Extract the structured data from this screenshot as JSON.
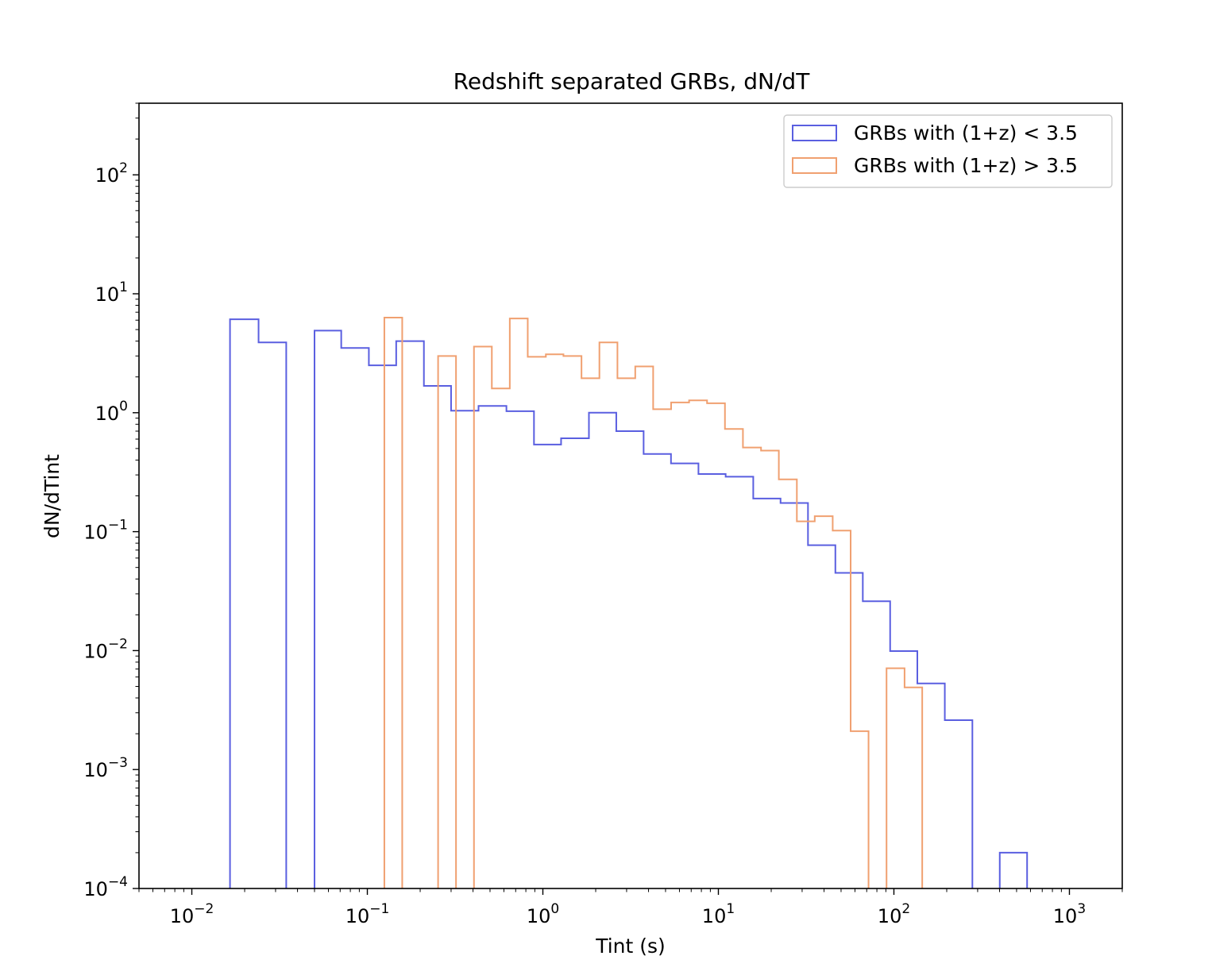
{
  "chart_data": {
    "type": "histogram-step",
    "title": "Redshift separated GRBs, dN/dT",
    "xlabel": "Tint (s)",
    "ylabel": "dN/dTint",
    "xscale": "log",
    "yscale": "log",
    "xlim": [
      0.005,
      2000
    ],
    "ylim": [
      0.0001,
      400
    ],
    "x_ticks": [
      {
        "value": 0.01,
        "base": "10",
        "exp": "−2"
      },
      {
        "value": 0.1,
        "base": "10",
        "exp": "−1"
      },
      {
        "value": 1,
        "base": "10",
        "exp": "0"
      },
      {
        "value": 10,
        "base": "10",
        "exp": "1"
      },
      {
        "value": 100,
        "base": "10",
        "exp": "2"
      },
      {
        "value": 1000,
        "base": "10",
        "exp": "3"
      }
    ],
    "y_ticks": [
      {
        "value": 0.0001,
        "base": "10",
        "exp": "−4"
      },
      {
        "value": 0.001,
        "base": "10",
        "exp": "−3"
      },
      {
        "value": 0.01,
        "base": "10",
        "exp": "−2"
      },
      {
        "value": 0.1,
        "base": "10",
        "exp": "−1"
      },
      {
        "value": 1,
        "base": "10",
        "exp": "0"
      },
      {
        "value": 10,
        "base": "10",
        "exp": "1"
      },
      {
        "value": 100,
        "base": "10",
        "exp": "2"
      }
    ],
    "legend_position": "top-right",
    "grid": false,
    "series": [
      {
        "name": "GRBs with (1+z) < 3.5",
        "color": "#5a5fe0",
        "bins": [
          {
            "x0": 0.0165,
            "x1": 0.024,
            "y": 6.1
          },
          {
            "x0": 0.024,
            "x1": 0.0345,
            "y": 3.9
          },
          {
            "x0": 0.0345,
            "x1": 0.05,
            "y": 0
          },
          {
            "x0": 0.05,
            "x1": 0.071,
            "y": 4.9
          },
          {
            "x0": 0.071,
            "x1": 0.102,
            "y": 3.5
          },
          {
            "x0": 0.102,
            "x1": 0.146,
            "y": 2.5
          },
          {
            "x0": 0.146,
            "x1": 0.21,
            "y": 4.0
          },
          {
            "x0": 0.21,
            "x1": 0.3,
            "y": 1.68
          },
          {
            "x0": 0.3,
            "x1": 0.43,
            "y": 1.04
          },
          {
            "x0": 0.43,
            "x1": 0.62,
            "y": 1.14
          },
          {
            "x0": 0.62,
            "x1": 0.89,
            "y": 1.03
          },
          {
            "x0": 0.89,
            "x1": 1.27,
            "y": 0.54
          },
          {
            "x0": 1.27,
            "x1": 1.83,
            "y": 0.61
          },
          {
            "x0": 1.83,
            "x1": 2.62,
            "y": 1.0
          },
          {
            "x0": 2.62,
            "x1": 3.75,
            "y": 0.7
          },
          {
            "x0": 3.75,
            "x1": 5.37,
            "y": 0.45
          },
          {
            "x0": 5.37,
            "x1": 7.7,
            "y": 0.375
          },
          {
            "x0": 7.7,
            "x1": 11.0,
            "y": 0.305
          },
          {
            "x0": 11.0,
            "x1": 15.8,
            "y": 0.29
          },
          {
            "x0": 15.8,
            "x1": 22.6,
            "y": 0.19
          },
          {
            "x0": 22.6,
            "x1": 32.4,
            "y": 0.174
          },
          {
            "x0": 32.4,
            "x1": 46.4,
            "y": 0.077
          },
          {
            "x0": 46.4,
            "x1": 66.5,
            "y": 0.045
          },
          {
            "x0": 66.5,
            "x1": 95.2,
            "y": 0.026
          },
          {
            "x0": 95.2,
            "x1": 136,
            "y": 0.0099
          },
          {
            "x0": 136,
            "x1": 195,
            "y": 0.0053
          },
          {
            "x0": 195,
            "x1": 280,
            "y": 0.0026
          },
          {
            "x0": 280,
            "x1": 401,
            "y": 0
          },
          {
            "x0": 401,
            "x1": 574,
            "y": 0.0002
          }
        ]
      },
      {
        "name": "GRBs with (1+z) > 3.5",
        "color": "#f0a070",
        "bins": [
          {
            "x0": 0.125,
            "x1": 0.158,
            "y": 6.3
          },
          {
            "x0": 0.158,
            "x1": 0.2,
            "y": 0
          },
          {
            "x0": 0.2,
            "x1": 0.253,
            "y": 0
          },
          {
            "x0": 0.253,
            "x1": 0.32,
            "y": 3.0
          },
          {
            "x0": 0.32,
            "x1": 0.405,
            "y": 0
          },
          {
            "x0": 0.405,
            "x1": 0.512,
            "y": 3.6
          },
          {
            "x0": 0.512,
            "x1": 0.648,
            "y": 1.6
          },
          {
            "x0": 0.648,
            "x1": 0.82,
            "y": 6.2
          },
          {
            "x0": 0.82,
            "x1": 1.04,
            "y": 2.95
          },
          {
            "x0": 1.04,
            "x1": 1.31,
            "y": 3.1
          },
          {
            "x0": 1.31,
            "x1": 1.66,
            "y": 3.0
          },
          {
            "x0": 1.66,
            "x1": 2.1,
            "y": 1.95
          },
          {
            "x0": 2.1,
            "x1": 2.66,
            "y": 3.9
          },
          {
            "x0": 2.66,
            "x1": 3.36,
            "y": 1.95
          },
          {
            "x0": 3.36,
            "x1": 4.25,
            "y": 2.45
          },
          {
            "x0": 4.25,
            "x1": 5.38,
            "y": 1.07
          },
          {
            "x0": 5.38,
            "x1": 6.81,
            "y": 1.22
          },
          {
            "x0": 6.81,
            "x1": 8.62,
            "y": 1.27
          },
          {
            "x0": 8.62,
            "x1": 10.9,
            "y": 1.2
          },
          {
            "x0": 10.9,
            "x1": 13.8,
            "y": 0.73
          },
          {
            "x0": 13.8,
            "x1": 17.5,
            "y": 0.51
          },
          {
            "x0": 17.5,
            "x1": 22.1,
            "y": 0.48
          },
          {
            "x0": 22.1,
            "x1": 28.0,
            "y": 0.275
          },
          {
            "x0": 28.0,
            "x1": 35.4,
            "y": 0.122
          },
          {
            "x0": 35.4,
            "x1": 44.8,
            "y": 0.135
          },
          {
            "x0": 44.8,
            "x1": 56.7,
            "y": 0.102
          },
          {
            "x0": 56.7,
            "x1": 71.7,
            "y": 0.0021
          },
          {
            "x0": 71.7,
            "x1": 90.8,
            "y": 0
          },
          {
            "x0": 90.8,
            "x1": 115,
            "y": 0.0071
          },
          {
            "x0": 115,
            "x1": 145,
            "y": 0.0049
          }
        ]
      }
    ]
  }
}
